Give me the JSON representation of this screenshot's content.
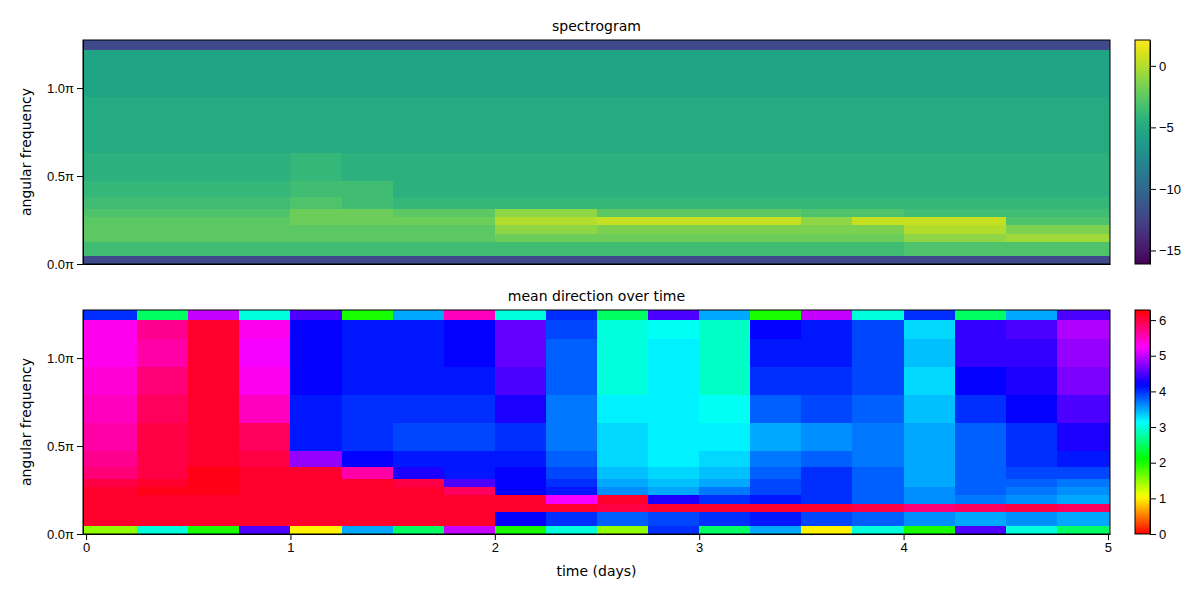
{
  "chart_data": [
    {
      "type": "heatmap",
      "title": "spectrogram",
      "y_label": "angular frequency",
      "tick_labels": "y",
      "color": "viridis",
      "xlim": [
        -0.015,
        5.01
      ],
      "ylim": [
        0,
        4
      ],
      "yticks": [
        {
          "value": 0,
          "label": "0.0π"
        },
        {
          "value": 1.5708,
          "label": "0.5π"
        },
        {
          "value": 3.1416,
          "label": "1.0π"
        }
      ],
      "x_edges": [
        -0.015,
        0.25,
        0.5,
        0.75,
        1.0,
        1.25,
        1.5,
        1.75,
        2.0,
        2.25,
        2.5,
        2.75,
        3.0,
        3.25,
        3.5,
        3.75,
        4.0,
        4.25,
        4.5,
        4.75,
        5.01
      ],
      "y_edges": [
        0,
        0.16,
        0.4,
        0.55,
        0.7,
        0.85,
        1.0,
        1.2,
        1.5,
        2.0,
        2.5,
        3.0,
        3.5,
        3.83,
        4.0
      ],
      "values": [
        [
          -12,
          -12,
          -12,
          -12,
          -12,
          -12,
          -12,
          -12,
          -12,
          -12,
          -12,
          -12,
          -12,
          -12,
          -12,
          -12,
          -12,
          -12,
          -12,
          -12
        ],
        [
          -3.5,
          -3.5,
          -3.5,
          -3.5,
          -3.5,
          -3.5,
          -3.5,
          -3.5,
          -3.5,
          -3.5,
          -3.5,
          -3.5,
          -3.5,
          -3.5,
          -3.5,
          -3.5,
          -3,
          -3,
          -3,
          -3
        ],
        [
          -2.5,
          -2.5,
          -2.5,
          -2.5,
          -2.5,
          -2.5,
          -2.5,
          -2.5,
          -2,
          -2,
          -2,
          -2,
          -2,
          -2,
          -2,
          -2,
          -1,
          -1,
          -0.5,
          -0.5
        ],
        [
          -2.5,
          -2.5,
          -2.5,
          -2.5,
          -2.5,
          -2.5,
          -2.5,
          -2.5,
          -1,
          -1,
          -1.5,
          -1.5,
          -1.5,
          -1.5,
          -1.5,
          -1.5,
          0,
          0,
          -1.5,
          -1.5
        ],
        [
          -2.5,
          -2.5,
          -2.5,
          -2.5,
          -2,
          -2,
          -2,
          -2,
          0,
          0,
          0.5,
          0.5,
          0.5,
          0.5,
          -1,
          0.5,
          0.5,
          0.5,
          -3,
          -3
        ],
        [
          -3,
          -3,
          -3,
          -3,
          -2,
          -2,
          -2.5,
          -2.5,
          -1,
          -1,
          -2.5,
          -2.5,
          -2.5,
          -2.5,
          -3,
          -3,
          -3.5,
          -3.5,
          -3.5,
          -3.5
        ],
        [
          -3.5,
          -3.5,
          -3.5,
          -3.5,
          -3,
          -3.5,
          -4,
          -4,
          -4,
          -4,
          -4,
          -4,
          -4,
          -4,
          -4,
          -4,
          -4,
          -4,
          -4,
          -4
        ],
        [
          -4,
          -4,
          -4,
          -4,
          -3.5,
          -3.5,
          -4.5,
          -4.5,
          -4.5,
          -4.5,
          -4.5,
          -4.5,
          -4.5,
          -4.5,
          -4.5,
          -4.5,
          -4.5,
          -4.5,
          -4.5,
          -4.5
        ],
        [
          -4.5,
          -4.5,
          -4.5,
          -4.5,
          -4,
          -4.5,
          -4.5,
          -4.5,
          -4.5,
          -4.5,
          -4.5,
          -4.5,
          -4.5,
          -4.5,
          -4.5,
          -4.5,
          -4.5,
          -4.5,
          -4.5,
          -4.5
        ],
        [
          -5,
          -5,
          -5,
          -5,
          -5,
          -5,
          -5,
          -5,
          -5,
          -5,
          -5,
          -5,
          -5,
          -5,
          -5,
          -5,
          -5,
          -5,
          -5,
          -5
        ],
        [
          -5,
          -5,
          -5,
          -5,
          -5,
          -5,
          -5,
          -5,
          -5,
          -5,
          -5,
          -5,
          -5,
          -5,
          -5,
          -5,
          -5,
          -5,
          -5,
          -5
        ],
        [
          -5.5,
          -5.5,
          -5.5,
          -5.5,
          -5.5,
          -5.5,
          -5.5,
          -5.5,
          -5.5,
          -5.5,
          -5.5,
          -5.5,
          -5.5,
          -5.5,
          -5.5,
          -5.5,
          -5.5,
          -5.5,
          -5.5,
          -5.5
        ],
        [
          -5.5,
          -5.5,
          -5.5,
          -5.5,
          -5.5,
          -5.5,
          -5.5,
          -5.5,
          -5.5,
          -5.5,
          -5.5,
          -5.5,
          -5.5,
          -5.5,
          -5.5,
          -5.5,
          -5.5,
          -5.5,
          -5.5,
          -5.5
        ],
        [
          -12,
          -12,
          -12,
          -12,
          -12,
          -12,
          -12,
          -12,
          -12,
          -12,
          -12,
          -12,
          -12,
          -12,
          -12,
          -12,
          -12,
          -12,
          -12,
          -12
        ]
      ],
      "colorbar": {
        "lim": [
          -16.1,
          2.1
        ],
        "ticks": [
          {
            "value": 0,
            "label": "0"
          },
          {
            "value": -5,
            "label": "−5"
          },
          {
            "value": -10,
            "label": "−10"
          },
          {
            "value": -15,
            "label": "−15"
          }
        ]
      }
    },
    {
      "type": "heatmap",
      "title": "mean direction over time",
      "x_label": "time (days)",
      "y_label": "angular frequency",
      "color": "hsv",
      "xlim": [
        -0.015,
        5.01
      ],
      "ylim": [
        0,
        4
      ],
      "xticks": [
        0,
        1,
        2,
        3,
        4,
        5
      ],
      "yticks": [
        {
          "value": 0,
          "label": "0.0π"
        },
        {
          "value": 1.5708,
          "label": "0.5π"
        },
        {
          "value": 3.1416,
          "label": "1.0π"
        }
      ],
      "x_edges": [
        -0.015,
        0.25,
        0.5,
        0.75,
        1.0,
        1.25,
        1.5,
        1.75,
        2.0,
        2.25,
        2.5,
        2.75,
        3.0,
        3.25,
        3.5,
        3.75,
        4.0,
        4.25,
        4.5,
        4.75,
        5.01
      ],
      "y_edges": [
        0,
        0.16,
        0.4,
        0.55,
        0.7,
        0.85,
        1.0,
        1.2,
        1.5,
        2.0,
        2.5,
        3.0,
        3.5,
        3.83,
        4.0
      ],
      "values": [
        [
          1.5,
          3.0,
          2.0,
          4.5,
          1.0,
          3.5,
          2.5,
          5.0,
          2.0,
          3.0,
          1.5,
          4.0,
          2.5,
          3.5,
          1.0,
          3.0,
          2.0,
          4.5,
          3.0,
          2.5
        ],
        [
          6.1,
          6.1,
          6.1,
          6.1,
          6.1,
          6.1,
          6.1,
          6.1,
          4.2,
          4.0,
          3.8,
          3.9,
          4.0,
          4.1,
          3.9,
          3.8,
          3.6,
          3.5,
          3.6,
          3.5
        ],
        [
          6.1,
          6.1,
          6.1,
          6.1,
          6.1,
          6.1,
          6.1,
          6.1,
          6.1,
          6.1,
          6.0,
          6.1,
          6.1,
          6.1,
          6.1,
          6.0,
          5.8,
          5.9,
          6.0,
          5.9
        ],
        [
          6.1,
          6.1,
          6.1,
          6.1,
          6.1,
          6.1,
          6.1,
          6.1,
          6.1,
          5.2,
          6.1,
          4.3,
          4.0,
          4.1,
          4.0,
          3.8,
          3.6,
          3.7,
          3.6,
          3.5
        ],
        [
          6.1,
          6.2,
          6.2,
          6.1,
          6.1,
          6.1,
          6.1,
          5.9,
          4.2,
          4.1,
          3.6,
          3.5,
          3.7,
          3.9,
          4.0,
          3.8,
          3.6,
          3.8,
          3.7,
          3.6
        ],
        [
          6.0,
          6.1,
          6.2,
          6.1,
          6.1,
          6.1,
          6.0,
          4.5,
          4.2,
          4.0,
          3.5,
          3.4,
          3.5,
          3.9,
          4.0,
          3.8,
          3.5,
          3.8,
          3.8,
          3.7
        ],
        [
          5.8,
          6.0,
          6.2,
          6.1,
          6.1,
          5.6,
          4.3,
          4.1,
          4.2,
          3.9,
          3.4,
          3.3,
          3.4,
          3.8,
          4.0,
          3.8,
          3.5,
          3.8,
          3.9,
          3.9
        ],
        [
          5.7,
          6.0,
          6.1,
          6.0,
          4.8,
          4.2,
          4.1,
          4.1,
          4.1,
          3.8,
          3.3,
          3.2,
          3.3,
          3.7,
          3.8,
          3.7,
          3.5,
          3.8,
          4.0,
          4.1
        ],
        [
          5.6,
          6.0,
          6.1,
          5.9,
          4.1,
          4.0,
          3.9,
          3.9,
          4.0,
          3.7,
          3.3,
          3.2,
          3.2,
          3.5,
          3.6,
          3.7,
          3.5,
          3.8,
          4.0,
          4.3
        ],
        [
          5.5,
          5.9,
          6.1,
          5.5,
          4.1,
          4.0,
          4.0,
          4.0,
          4.3,
          3.7,
          3.2,
          3.2,
          3.1,
          3.8,
          3.9,
          3.8,
          3.4,
          4.0,
          4.2,
          4.5
        ],
        [
          5.4,
          5.8,
          6.1,
          5.3,
          4.2,
          4.1,
          4.1,
          4.1,
          4.5,
          3.8,
          3.0,
          3.2,
          2.9,
          4.0,
          4.0,
          3.9,
          3.3,
          4.2,
          4.3,
          4.7
        ],
        [
          5.3,
          5.6,
          6.1,
          5.2,
          4.2,
          4.1,
          4.1,
          4.2,
          4.6,
          3.8,
          3.0,
          3.2,
          2.9,
          4.1,
          4.1,
          3.9,
          3.4,
          4.4,
          4.4,
          4.8
        ],
        [
          5.3,
          5.7,
          6.1,
          5.3,
          4.2,
          4.1,
          4.1,
          4.2,
          4.6,
          3.9,
          3.0,
          3.1,
          2.9,
          4.2,
          4.1,
          3.9,
          3.3,
          4.4,
          4.5,
          4.9
        ],
        [
          4.0,
          2.5,
          5.0,
          3.0,
          4.5,
          2.0,
          3.5,
          5.5,
          3.0,
          4.0,
          2.5,
          4.5,
          3.5,
          2.0,
          5.0,
          3.0,
          4.0,
          2.5,
          3.5,
          4.5
        ]
      ],
      "colorbar": {
        "lim": [
          0,
          6.2832
        ],
        "ticks": [
          0,
          1,
          2,
          3,
          4,
          5,
          6
        ]
      }
    }
  ]
}
